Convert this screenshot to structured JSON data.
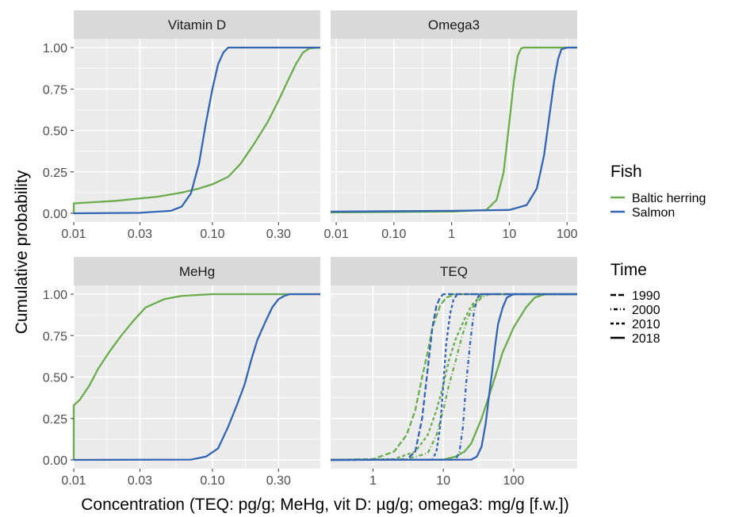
{
  "chart_data": {
    "type": "line",
    "subtype": "cumulative distribution (ECDF), facetted",
    "xlabel": "Concentration (TEQ: pg/g; MeHg, vit D: µg/g; omega3: mg/g [f.w.])",
    "ylabel": "Cumulative probability",
    "x_scale": "log10",
    "y_ticks": [
      "0.00",
      "0.25",
      "0.50",
      "0.75",
      "1.00"
    ],
    "ylim": [
      0,
      1
    ],
    "grid": true,
    "legends": {
      "fish": {
        "title": "Fish",
        "entries": [
          {
            "label": "Baltic herring",
            "color": "#6aac4e"
          },
          {
            "label": "Salmon",
            "color": "#3464b4"
          }
        ]
      },
      "time": {
        "title": "Time",
        "entries": [
          {
            "label": "1990",
            "dash": "long"
          },
          {
            "label": "2000",
            "dash": "dotdash"
          },
          {
            "label": "2010",
            "dash": "medium"
          },
          {
            "label": "2018",
            "dash": "solid"
          }
        ]
      }
    },
    "panels": [
      {
        "id": "vitd",
        "title": "Vitamin D",
        "xlim": [
          0.01,
          0.6
        ],
        "x_ticks": [
          {
            "v": 0.01,
            "label": "0.01"
          },
          {
            "v": 0.03,
            "label": "0.03"
          },
          {
            "v": 0.1,
            "label": "0.10"
          },
          {
            "v": 0.3,
            "label": "0.30"
          }
        ],
        "series": [
          {
            "fish": "Baltic herring",
            "time": "2018",
            "points": [
              [
                0.01,
                0
              ],
              [
                0.01,
                0.06
              ],
              [
                0.02,
                0.075
              ],
              [
                0.04,
                0.1
              ],
              [
                0.06,
                0.125
              ],
              [
                0.08,
                0.15
              ],
              [
                0.1,
                0.175
              ],
              [
                0.13,
                0.22
              ],
              [
                0.16,
                0.3
              ],
              [
                0.2,
                0.42
              ],
              [
                0.25,
                0.55
              ],
              [
                0.3,
                0.68
              ],
              [
                0.35,
                0.8
              ],
              [
                0.4,
                0.9
              ],
              [
                0.45,
                0.97
              ],
              [
                0.5,
                0.995
              ],
              [
                0.6,
                1
              ]
            ]
          },
          {
            "fish": "Salmon",
            "time": "2018",
            "points": [
              [
                0.01,
                0
              ],
              [
                0.03,
                0.003
              ],
              [
                0.05,
                0.015
              ],
              [
                0.06,
                0.04
              ],
              [
                0.07,
                0.12
              ],
              [
                0.08,
                0.3
              ],
              [
                0.09,
                0.55
              ],
              [
                0.1,
                0.75
              ],
              [
                0.11,
                0.9
              ],
              [
                0.12,
                0.97
              ],
              [
                0.13,
                1
              ],
              [
                0.6,
                1
              ]
            ]
          }
        ]
      },
      {
        "id": "omega3",
        "title": "Omega3",
        "xlim": [
          0.008,
          150
        ],
        "x_ticks": [
          {
            "v": 0.01,
            "label": "0.01"
          },
          {
            "v": 0.1,
            "label": "0.10"
          },
          {
            "v": 1,
            "label": "1"
          },
          {
            "v": 10,
            "label": "10"
          },
          {
            "v": 100,
            "label": "100"
          }
        ],
        "series": [
          {
            "fish": "Baltic herring",
            "time": "2018",
            "points": [
              [
                0.008,
                0.005
              ],
              [
                1,
                0.01
              ],
              [
                4,
                0.02
              ],
              [
                6,
                0.08
              ],
              [
                8,
                0.25
              ],
              [
                10,
                0.55
              ],
              [
                12,
                0.8
              ],
              [
                14,
                0.95
              ],
              [
                16,
                0.995
              ],
              [
                18,
                1
              ],
              [
                150,
                1
              ]
            ]
          },
          {
            "fish": "Salmon",
            "time": "2018",
            "points": [
              [
                0.008,
                0.01
              ],
              [
                1,
                0.015
              ],
              [
                10,
                0.02
              ],
              [
                20,
                0.05
              ],
              [
                30,
                0.15
              ],
              [
                40,
                0.35
              ],
              [
                50,
                0.6
              ],
              [
                60,
                0.8
              ],
              [
                70,
                0.93
              ],
              [
                80,
                0.99
              ],
              [
                100,
                1
              ],
              [
                150,
                1
              ]
            ]
          }
        ]
      },
      {
        "id": "mehg",
        "title": "MeHg",
        "xlim": [
          0.01,
          0.6
        ],
        "x_ticks": [
          {
            "v": 0.01,
            "label": "0.01"
          },
          {
            "v": 0.03,
            "label": "0.03"
          },
          {
            "v": 0.1,
            "label": "0.10"
          },
          {
            "v": 0.3,
            "label": "0.30"
          }
        ],
        "series": [
          {
            "fish": "Baltic herring",
            "time": "2018",
            "points": [
              [
                0.01,
                0
              ],
              [
                0.01,
                0.33
              ],
              [
                0.011,
                0.36
              ],
              [
                0.013,
                0.45
              ],
              [
                0.015,
                0.55
              ],
              [
                0.018,
                0.65
              ],
              [
                0.022,
                0.75
              ],
              [
                0.027,
                0.84
              ],
              [
                0.033,
                0.92
              ],
              [
                0.045,
                0.97
              ],
              [
                0.06,
                0.99
              ],
              [
                0.1,
                1
              ],
              [
                0.6,
                1
              ]
            ]
          },
          {
            "fish": "Salmon",
            "time": "2018",
            "points": [
              [
                0.01,
                0
              ],
              [
                0.07,
                0.002
              ],
              [
                0.09,
                0.02
              ],
              [
                0.11,
                0.07
              ],
              [
                0.13,
                0.2
              ],
              [
                0.15,
                0.33
              ],
              [
                0.17,
                0.45
              ],
              [
                0.19,
                0.6
              ],
              [
                0.21,
                0.72
              ],
              [
                0.24,
                0.83
              ],
              [
                0.27,
                0.92
              ],
              [
                0.3,
                0.97
              ],
              [
                0.33,
                0.99
              ],
              [
                0.36,
                1
              ],
              [
                0.6,
                1
              ]
            ]
          }
        ]
      },
      {
        "id": "teq",
        "title": "TEQ",
        "xlim": [
          0.25,
          800
        ],
        "x_ticks": [
          {
            "v": 1,
            "label": "1"
          },
          {
            "v": 10,
            "label": "10"
          },
          {
            "v": 100,
            "label": "100"
          }
        ],
        "series": [
          {
            "fish": "Baltic herring",
            "time": "1990",
            "points": [
              [
                0.25,
                0
              ],
              [
                1,
                0.005
              ],
              [
                2,
                0.05
              ],
              [
                3,
                0.15
              ],
              [
                4,
                0.3
              ],
              [
                5,
                0.5
              ],
              [
                6,
                0.65
              ],
              [
                7,
                0.8
              ],
              [
                9,
                0.93
              ],
              [
                11,
                0.98
              ],
              [
                15,
                1
              ],
              [
                800,
                1
              ]
            ]
          },
          {
            "fish": "Baltic herring",
            "time": "2000",
            "points": [
              [
                0.25,
                0
              ],
              [
                3,
                0.005
              ],
              [
                6,
                0.04
              ],
              [
                8,
                0.15
              ],
              [
                10,
                0.3
              ],
              [
                12,
                0.45
              ],
              [
                15,
                0.6
              ],
              [
                18,
                0.73
              ],
              [
                22,
                0.85
              ],
              [
                27,
                0.93
              ],
              [
                35,
                0.98
              ],
              [
                45,
                1
              ],
              [
                800,
                1
              ]
            ]
          },
          {
            "fish": "Baltic herring",
            "time": "2010",
            "points": [
              [
                0.25,
                0
              ],
              [
                2,
                0.005
              ],
              [
                4,
                0.05
              ],
              [
                6,
                0.15
              ],
              [
                8,
                0.3
              ],
              [
                10,
                0.45
              ],
              [
                12,
                0.6
              ],
              [
                15,
                0.73
              ],
              [
                20,
                0.85
              ],
              [
                25,
                0.93
              ],
              [
                32,
                0.98
              ],
              [
                40,
                1
              ],
              [
                800,
                1
              ]
            ]
          },
          {
            "fish": "Baltic herring",
            "time": "2018",
            "points": [
              [
                0.25,
                0
              ],
              [
                10,
                0.002
              ],
              [
                15,
                0.02
              ],
              [
                20,
                0.05
              ],
              [
                25,
                0.1
              ],
              [
                35,
                0.25
              ],
              [
                50,
                0.45
              ],
              [
                70,
                0.65
              ],
              [
                100,
                0.8
              ],
              [
                150,
                0.92
              ],
              [
                200,
                0.98
              ],
              [
                280,
                1
              ],
              [
                800,
                1
              ]
            ]
          },
          {
            "fish": "Salmon",
            "time": "1990",
            "points": [
              [
                0.25,
                0
              ],
              [
                3,
                0.002
              ],
              [
                4,
                0.05
              ],
              [
                5,
                0.25
              ],
              [
                6,
                0.55
              ],
              [
                7,
                0.8
              ],
              [
                8,
                0.93
              ],
              [
                9,
                0.98
              ],
              [
                10,
                1
              ],
              [
                800,
                1
              ]
            ]
          },
          {
            "fish": "Salmon",
            "time": "2000",
            "points": [
              [
                0.25,
                0
              ],
              [
                15,
                0.002
              ],
              [
                17,
                0.05
              ],
              [
                19,
                0.2
              ],
              [
                21,
                0.45
              ],
              [
                24,
                0.7
              ],
              [
                27,
                0.88
              ],
              [
                30,
                0.97
              ],
              [
                33,
                1
              ],
              [
                800,
                1
              ]
            ]
          },
          {
            "fish": "Salmon",
            "time": "2010",
            "points": [
              [
                0.25,
                0
              ],
              [
                7,
                0.002
              ],
              [
                8,
                0.05
              ],
              [
                9,
                0.2
              ],
              [
                10,
                0.45
              ],
              [
                11,
                0.7
              ],
              [
                12.5,
                0.88
              ],
              [
                14,
                0.97
              ],
              [
                16,
                1
              ],
              [
                800,
                1
              ]
            ]
          },
          {
            "fish": "Salmon",
            "time": "2018",
            "points": [
              [
                0.25,
                0
              ],
              [
                25,
                0.002
              ],
              [
                30,
                0.02
              ],
              [
                35,
                0.08
              ],
              [
                40,
                0.22
              ],
              [
                45,
                0.4
              ],
              [
                50,
                0.55
              ],
              [
                55,
                0.7
              ],
              [
                60,
                0.82
              ],
              [
                70,
                0.92
              ],
              [
                80,
                0.98
              ],
              [
                100,
                1
              ],
              [
                800,
                1
              ]
            ]
          }
        ]
      }
    ]
  }
}
